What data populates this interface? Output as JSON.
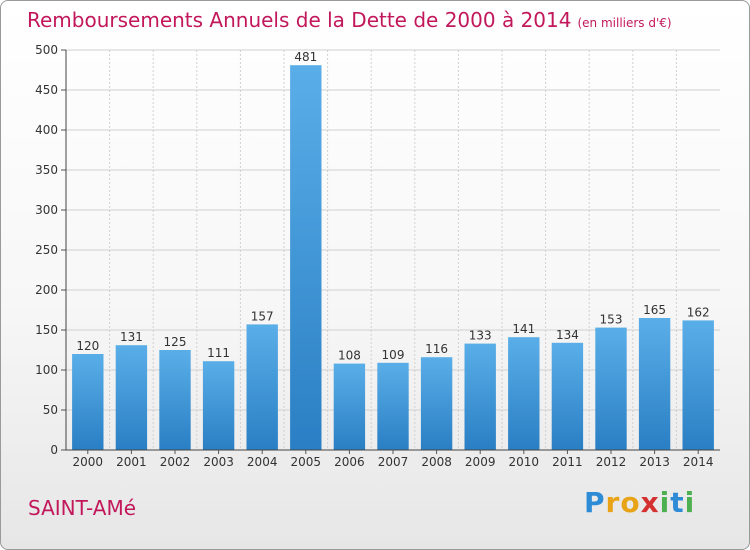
{
  "title": "Remboursements Annuels de la Dette de 2000 à 2014",
  "unit": "(en milliers d'€)",
  "commune": "SAINT-AMé",
  "logo": "Proxiti",
  "colors": {
    "bar_top": "#5aaee8",
    "bar_bottom": "#2a7fc4",
    "title": "#c2185b",
    "grid": "#d0d0d0"
  },
  "chart_data": {
    "type": "bar",
    "title": "Remboursements Annuels de la Dette de 2000 à 2014",
    "subtitle": "(en milliers d'€)",
    "categories": [
      "2000",
      "2001",
      "2002",
      "2003",
      "2004",
      "2005",
      "2006",
      "2007",
      "2008",
      "2009",
      "2010",
      "2011",
      "2012",
      "2013",
      "2014"
    ],
    "values": [
      120,
      131,
      125,
      111,
      157,
      481,
      108,
      109,
      116,
      133,
      141,
      134,
      153,
      165,
      162
    ],
    "ylim": [
      0,
      500
    ],
    "yticks": [
      0,
      50,
      100,
      150,
      200,
      250,
      300,
      350,
      400,
      450,
      500
    ],
    "grid": true,
    "data_labels": true
  }
}
